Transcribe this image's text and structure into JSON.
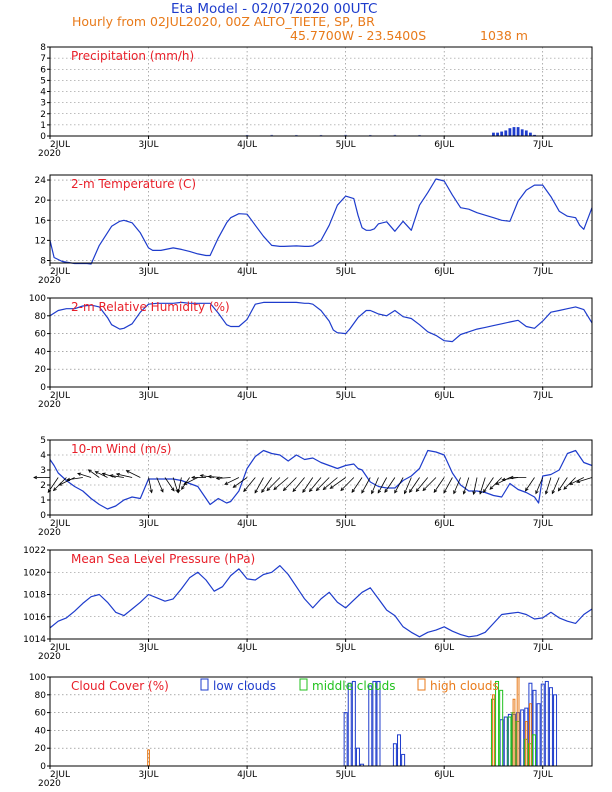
{
  "header": {
    "title": "Eta Model - 02/07/2020 00UTC",
    "subtitle": "Hourly from 02JUL2020, 00Z  ALTO_TIETE, SP, BR",
    "location": "45.7700W - 23.5400S",
    "elevation": "1038  m"
  },
  "colors": {
    "series": "#1e3ccc",
    "title": "#e8202a",
    "low": "#1e3ccc",
    "middle": "#22c21e",
    "high": "#e87a1a",
    "wind": "#000000"
  },
  "chart_data": [
    {
      "id": "precip",
      "type": "bar",
      "title": "Precipitation (mm/h)",
      "xlim": [
        0,
        132
      ],
      "ylim": [
        0,
        8
      ],
      "yticks": [
        0,
        1,
        2,
        3,
        4,
        5,
        6,
        7,
        8
      ],
      "bars": [
        [
          108,
          0.3
        ],
        [
          109,
          0.3
        ],
        [
          110,
          0.4
        ],
        [
          111,
          0.5
        ],
        [
          112,
          0.7
        ],
        [
          113,
          0.8
        ],
        [
          114,
          0.8
        ],
        [
          115,
          0.6
        ],
        [
          116,
          0.5
        ],
        [
          117,
          0.3
        ],
        [
          118,
          0.1
        ]
      ],
      "faint": [
        [
          48,
          0.04
        ],
        [
          54,
          0.05
        ],
        [
          60,
          0.04
        ],
        [
          66,
          0.04
        ],
        [
          72,
          0.05
        ],
        [
          78,
          0.04
        ],
        [
          84,
          0.05
        ],
        [
          90,
          0.04
        ]
      ],
      "xticks": [
        "2JUL",
        "3JUL",
        "4JUL",
        "5JUL",
        "6JUL",
        "7JUL"
      ],
      "year": "2020"
    },
    {
      "id": "temp",
      "type": "line",
      "title": "2-m Temperature (C)",
      "xlim": [
        0,
        132
      ],
      "ylim": [
        7.5,
        25
      ],
      "yticks": [
        8,
        12,
        16,
        20,
        24
      ],
      "x": [
        0,
        1,
        3,
        6,
        9,
        10,
        12,
        15,
        17,
        18,
        20,
        22,
        24,
        25,
        27,
        30,
        32,
        34,
        36,
        38,
        39,
        41,
        43,
        44,
        46,
        48,
        50,
        52,
        54,
        56,
        57,
        60,
        62,
        63,
        64,
        66,
        68,
        70,
        72,
        74,
        75,
        76,
        77,
        78,
        79,
        80,
        82,
        84,
        86,
        88,
        90,
        92,
        94,
        96,
        98,
        100,
        102,
        104,
        106,
        108,
        110,
        112,
        114,
        116,
        118,
        120,
        122,
        124,
        126,
        128,
        129,
        130,
        132
      ],
      "y": [
        12,
        8.6,
        7.8,
        7.4,
        7.4,
        7.3,
        11,
        14.8,
        15.8,
        16,
        15.5,
        13.5,
        10.5,
        10,
        10,
        10.5,
        10.2,
        9.8,
        9.3,
        9,
        9,
        12.5,
        15.5,
        16.5,
        17.3,
        17.2,
        15,
        12.8,
        11,
        10.8,
        10.8,
        10.9,
        10.8,
        10.8,
        10.9,
        12,
        15,
        19,
        20.8,
        20.3,
        17,
        14.5,
        14,
        14,
        14.3,
        15.3,
        15.7,
        13.8,
        15.8,
        14,
        19,
        21.5,
        24.2,
        23.8,
        21,
        18.5,
        18.2,
        17.5,
        17,
        16.5,
        16,
        15.8,
        19.8,
        22,
        23,
        23,
        20.7,
        17.8,
        16.8,
        16.5,
        15,
        14.2,
        18.5
      ],
      "xticks": [
        "2JUL",
        "3JUL",
        "4JUL",
        "5JUL",
        "6JUL",
        "7JUL"
      ],
      "year": "2020"
    },
    {
      "id": "rh",
      "type": "line",
      "title": "2-m Relative Humidity (%)",
      "xlim": [
        0,
        132
      ],
      "ylim": [
        0,
        100
      ],
      "yticks": [
        0,
        20,
        40,
        60,
        80,
        100
      ],
      "x": [
        0,
        2,
        4,
        6,
        8,
        10,
        12,
        14,
        15,
        17,
        18,
        20,
        22,
        24,
        26,
        30,
        32,
        34,
        36,
        37,
        39,
        41,
        43,
        44,
        46,
        48,
        50,
        52,
        56,
        60,
        62,
        63,
        64,
        66,
        68,
        69,
        70,
        72,
        73,
        75,
        77,
        78,
        79,
        80,
        82,
        84,
        86,
        88,
        90,
        92,
        94,
        96,
        98,
        100,
        102,
        104,
        106,
        108,
        110,
        112,
        114,
        116,
        118,
        120,
        122,
        124,
        126,
        128,
        130,
        132
      ],
      "y": [
        80,
        86,
        88,
        88,
        91,
        92,
        90,
        78,
        70,
        65,
        66,
        71,
        84,
        93,
        94,
        94,
        95,
        94,
        94,
        94,
        94,
        83,
        70,
        68,
        68,
        76,
        93,
        95,
        95,
        95,
        94,
        94,
        93,
        86,
        74,
        64,
        61,
        60,
        65,
        78,
        86,
        86,
        84,
        82,
        80,
        86,
        79,
        77,
        70,
        62,
        58,
        52,
        51,
        59,
        62,
        65,
        67,
        69,
        71,
        73,
        75,
        68,
        66,
        74,
        84,
        86,
        88,
        90,
        87,
        72
      ],
      "xticks": [
        "2JUL",
        "3JUL",
        "4JUL",
        "5JUL",
        "6JUL",
        "7JUL"
      ],
      "year": "2020"
    },
    {
      "id": "wind",
      "type": "line",
      "title": "10-m Wind (m/s)",
      "xlim": [
        0,
        132
      ],
      "ylim": [
        0,
        5
      ],
      "yticks": [
        0,
        1,
        2,
        3,
        4,
        5
      ],
      "x": [
        0,
        1,
        2,
        4,
        6,
        8,
        10,
        12,
        14,
        16,
        18,
        20,
        22,
        24,
        26,
        28,
        30,
        32,
        34,
        36,
        38,
        39,
        41,
        43,
        44,
        46,
        48,
        50,
        52,
        54,
        56,
        58,
        60,
        62,
        64,
        66,
        68,
        70,
        72,
        74,
        75,
        76,
        78,
        80,
        82,
        84,
        86,
        88,
        90,
        92,
        94,
        96,
        98,
        100,
        102,
        104,
        106,
        108,
        110,
        112,
        114,
        116,
        118,
        119,
        120,
        122,
        124,
        126,
        128,
        130,
        132
      ],
      "y": [
        3.7,
        3.3,
        2.8,
        2.3,
        1.9,
        1.6,
        1.1,
        0.7,
        0.4,
        0.6,
        1,
        1.2,
        1.1,
        2.4,
        2.4,
        2.4,
        2.4,
        2.3,
        2.1,
        1.9,
        1.1,
        0.7,
        1.1,
        0.8,
        0.9,
        1.6,
        3.1,
        3.9,
        4.3,
        4.1,
        4,
        3.6,
        4,
        3.7,
        3.8,
        3.5,
        3.3,
        3.1,
        3.3,
        3.4,
        3.1,
        3,
        2.2,
        1.9,
        1.8,
        1.8,
        2.3,
        2.6,
        3.1,
        4.3,
        4.2,
        4,
        2.8,
        2,
        1.6,
        1.6,
        1.5,
        1.3,
        1.2,
        2.1,
        1.7,
        1.5,
        1.2,
        0.8,
        2.6,
        2.7,
        3,
        4.1,
        4.3,
        3.5,
        3.3
      ],
      "xticks": [
        "2JUL",
        "3JUL",
        "4JUL",
        "5JUL",
        "6JUL",
        "7JUL"
      ],
      "year": "2020",
      "barbs": [
        [
          0,
          270,
          0.8
        ],
        [
          2,
          330,
          1
        ],
        [
          4,
          320,
          1
        ],
        [
          6,
          300,
          0.9
        ],
        [
          8,
          280,
          0.8
        ],
        [
          10,
          250,
          0.7
        ],
        [
          12,
          230,
          0.7
        ],
        [
          14,
          240,
          0.7
        ],
        [
          16,
          250,
          0.7
        ],
        [
          18,
          260,
          0.7
        ],
        [
          20,
          255,
          0.8
        ],
        [
          22,
          240,
          0.8
        ],
        [
          24,
          10,
          0.9
        ],
        [
          26,
          20,
          0.9
        ],
        [
          28,
          30,
          0.9
        ],
        [
          30,
          15,
          0.9
        ],
        [
          32,
          350,
          0.9
        ],
        [
          34,
          330,
          0.8
        ],
        [
          36,
          300,
          0.8
        ],
        [
          38,
          270,
          0.7
        ],
        [
          40,
          260,
          0.7
        ],
        [
          42,
          265,
          0.7
        ],
        [
          44,
          275,
          0.7
        ],
        [
          46,
          300,
          0.8
        ],
        [
          48,
          310,
          0.9
        ],
        [
          50,
          325,
          1
        ],
        [
          52,
          335,
          1
        ],
        [
          54,
          330,
          1
        ],
        [
          56,
          320,
          1
        ],
        [
          58,
          315,
          1
        ],
        [
          60,
          320,
          1
        ],
        [
          62,
          325,
          1
        ],
        [
          64,
          330,
          1
        ],
        [
          66,
          325,
          1
        ],
        [
          68,
          320,
          1
        ],
        [
          70,
          315,
          1
        ],
        [
          72,
          310,
          1
        ],
        [
          74,
          320,
          1
        ],
        [
          76,
          330,
          1
        ],
        [
          78,
          335,
          1
        ],
        [
          80,
          340,
          1
        ],
        [
          82,
          335,
          1
        ],
        [
          84,
          330,
          1
        ],
        [
          86,
          335,
          1
        ],
        [
          88,
          340,
          1
        ],
        [
          90,
          330,
          1
        ],
        [
          92,
          325,
          1
        ],
        [
          94,
          320,
          1
        ],
        [
          96,
          330,
          1
        ],
        [
          98,
          335,
          1
        ],
        [
          100,
          340,
          1
        ],
        [
          102,
          345,
          1
        ],
        [
          104,
          350,
          1
        ],
        [
          106,
          345,
          1
        ],
        [
          108,
          330,
          1
        ],
        [
          110,
          320,
          0.9
        ],
        [
          112,
          300,
          0.8
        ],
        [
          114,
          280,
          0.8
        ],
        [
          116,
          270,
          0.8
        ],
        [
          118,
          330,
          0.9
        ],
        [
          120,
          340,
          1
        ],
        [
          122,
          345,
          1
        ],
        [
          124,
          340,
          1
        ],
        [
          126,
          330,
          0.9
        ],
        [
          128,
          320,
          0.9
        ],
        [
          130,
          300,
          0.8
        ],
        [
          132,
          290,
          0.8
        ]
      ]
    },
    {
      "id": "mslp",
      "type": "line",
      "title": "Mean Sea Level Pressure (hPa)",
      "xlim": [
        0,
        132
      ],
      "ylim": [
        1014,
        1022
      ],
      "yticks": [
        1014,
        1016,
        1018,
        1020,
        1022
      ],
      "x": [
        0,
        2,
        4,
        6,
        8,
        10,
        12,
        14,
        16,
        18,
        20,
        22,
        24,
        26,
        28,
        30,
        32,
        34,
        36,
        38,
        40,
        42,
        44,
        46,
        48,
        50,
        52,
        54,
        56,
        58,
        60,
        62,
        64,
        66,
        68,
        70,
        72,
        74,
        76,
        78,
        80,
        82,
        84,
        86,
        88,
        90,
        92,
        94,
        96,
        98,
        100,
        102,
        104,
        106,
        108,
        110,
        112,
        114,
        116,
        118,
        120,
        122,
        124,
        126,
        128,
        130,
        132
      ],
      "y": [
        1015,
        1015.6,
        1015.9,
        1016.5,
        1017.2,
        1017.8,
        1018,
        1017.3,
        1016.4,
        1016.1,
        1016.7,
        1017.3,
        1018,
        1017.7,
        1017.4,
        1017.6,
        1018.5,
        1019.5,
        1020,
        1019.3,
        1018.3,
        1018.7,
        1019.7,
        1020.3,
        1019.4,
        1019.3,
        1019.8,
        1020,
        1020.6,
        1019.8,
        1018.7,
        1017.6,
        1016.8,
        1017.6,
        1018.2,
        1017.3,
        1016.8,
        1017.5,
        1018.2,
        1018.6,
        1017.6,
        1016.6,
        1016.1,
        1015.1,
        1014.6,
        1014.2,
        1014.6,
        1014.8,
        1015.1,
        1014.7,
        1014.4,
        1014.2,
        1014.3,
        1014.6,
        1015.4,
        1016.2,
        1016.3,
        1016.4,
        1016.2,
        1015.8,
        1015.9,
        1016.4,
        1015.9,
        1015.6,
        1015.4,
        1016.2,
        1016.7
      ],
      "xticks": [
        "2JUL",
        "3JUL",
        "4JUL",
        "5JUL",
        "6JUL",
        "7JUL"
      ],
      "year": "2020"
    },
    {
      "id": "cloud",
      "type": "bar",
      "title": "Cloud Cover (%)",
      "legend": [
        "low clouds",
        "middle clouds",
        "high clouds"
      ],
      "xlim": [
        0,
        132
      ],
      "ylim": [
        0,
        100
      ],
      "yticks": [
        0,
        20,
        40,
        60,
        80,
        100
      ],
      "low": [
        [
          72,
          60
        ],
        [
          73,
          93
        ],
        [
          74,
          95
        ],
        [
          75,
          20
        ],
        [
          76,
          2
        ],
        [
          78,
          90
        ],
        [
          79,
          95
        ],
        [
          80,
          95
        ],
        [
          84,
          25
        ],
        [
          85,
          35
        ],
        [
          86,
          13
        ],
        [
          110,
          52
        ],
        [
          111,
          55
        ],
        [
          112,
          58
        ],
        [
          113,
          58
        ],
        [
          114,
          60
        ],
        [
          115,
          63
        ],
        [
          116,
          65
        ],
        [
          117,
          93
        ],
        [
          118,
          85
        ],
        [
          119,
          70
        ],
        [
          120,
          92
        ],
        [
          121,
          95
        ],
        [
          122,
          88
        ],
        [
          123,
          80
        ]
      ],
      "middle": [
        [
          108,
          75
        ],
        [
          109,
          95
        ],
        [
          110,
          85
        ],
        [
          112,
          55
        ],
        [
          113,
          60
        ],
        [
          114,
          50
        ],
        [
          116,
          30
        ],
        [
          117,
          25
        ],
        [
          118,
          35
        ]
      ],
      "high": [
        [
          24,
          18
        ],
        [
          108,
          80
        ],
        [
          113,
          75
        ],
        [
          114,
          100
        ],
        [
          116,
          50
        ],
        [
          117,
          70
        ]
      ],
      "xticks": [
        "2JUL",
        "3JUL",
        "4JUL",
        "5JUL",
        "6JUL",
        "7JUL"
      ],
      "year": "2020"
    }
  ]
}
